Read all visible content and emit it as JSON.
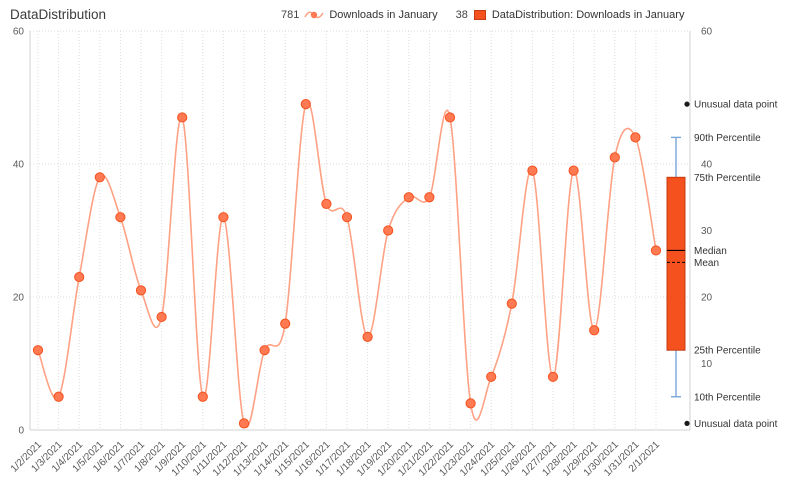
{
  "title": "DataDistribution",
  "legend": {
    "items": [
      {
        "value": "781",
        "icon": "line-series-icon",
        "label": "Downloads in January"
      },
      {
        "value": "38",
        "icon": "box-series-icon",
        "label": "DataDistribution: Downloads in January"
      }
    ]
  },
  "chart_data": {
    "type": "line",
    "title": "DataDistribution",
    "x": [
      "1/2/2021",
      "1/3/2021",
      "1/4/2021",
      "1/5/2021",
      "1/6/2021",
      "1/7/2021",
      "1/8/2021",
      "1/9/2021",
      "1/10/2021",
      "1/11/2021",
      "1/12/2021",
      "1/13/2021",
      "1/14/2021",
      "1/15/2021",
      "1/16/2021",
      "1/17/2021",
      "1/18/2021",
      "1/19/2021",
      "1/20/2021",
      "1/21/2021",
      "1/22/2021",
      "1/23/2021",
      "1/24/2021",
      "1/25/2021",
      "1/26/2021",
      "1/27/2021",
      "1/28/2021",
      "1/29/2021",
      "1/30/2021",
      "1/31/2021",
      "2/1/2021"
    ],
    "series": [
      {
        "name": "Downloads in January",
        "type": "line",
        "values": [
          12,
          5,
          23,
          38,
          32,
          21,
          17,
          47,
          5,
          32,
          1,
          12,
          16,
          49,
          34,
          32,
          14,
          30,
          35,
          35,
          47,
          4,
          8,
          19,
          39,
          8,
          39,
          15,
          41,
          44,
          27
        ]
      }
    ],
    "ylim": [
      0,
      60
    ],
    "left_axis_ticks": [
      0,
      20,
      40,
      60
    ],
    "right_axis_ticks": [
      10,
      20,
      30,
      40,
      60
    ],
    "grid": true,
    "legend_position": "top",
    "boxplot": {
      "name": "DataDistribution: Downloads in January",
      "stats": {
        "outlier_high": 49,
        "p90": 44,
        "p75": 38,
        "median": 27,
        "mean": 25.2,
        "p25": 12,
        "p10": 5,
        "outlier_low": 1
      },
      "annotations": [
        {
          "at": 49,
          "label": "Unusual data point",
          "dot": true
        },
        {
          "at": 44,
          "label": "90th Percentile",
          "dot": false
        },
        {
          "at": 38,
          "label": "75th Percentile",
          "dot": false
        },
        {
          "at": 27,
          "label": "Median",
          "dot": false
        },
        {
          "at": 25.2,
          "label": "Mean",
          "dot": false
        },
        {
          "at": 12,
          "label": "25th Percentile",
          "dot": false
        },
        {
          "at": 5,
          "label": "10th Percentile",
          "dot": false
        },
        {
          "at": 1,
          "label": "Unusual data point",
          "dot": true
        }
      ]
    },
    "colors": {
      "line": "#ffa184",
      "marker": "#ff7a52",
      "marker_stroke": "#f4511e",
      "box_fill": "#f4511e",
      "box_stroke": "#c43d12",
      "whisker": "#7aa6d8",
      "median_line": "#000000",
      "mean_line": "#000000",
      "outlier": "#1a1a1a",
      "grid": "#dcdcdc",
      "axis_text": "#595959"
    }
  }
}
